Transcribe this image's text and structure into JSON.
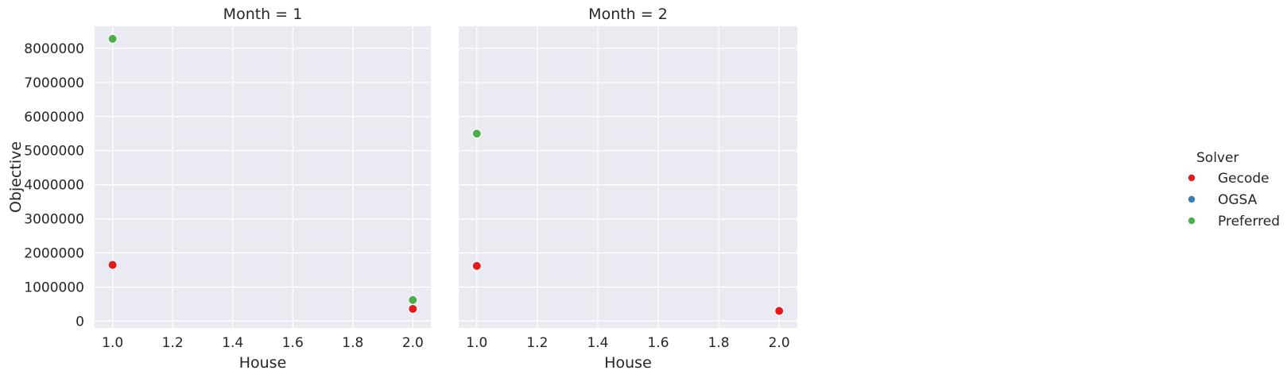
{
  "chart_data": {
    "type": "scatter",
    "xlabel": "House",
    "ylabel": "Objective",
    "xlim": [
      0.94,
      2.06
    ],
    "ylim": [
      -200000,
      8650000
    ],
    "xticks": [
      "1.0",
      "1.2",
      "1.4",
      "1.6",
      "1.8",
      "2.0"
    ],
    "yticks": [
      "0",
      "1000000",
      "2000000",
      "3000000",
      "4000000",
      "5000000",
      "6000000",
      "7000000",
      "8000000"
    ],
    "grid": true,
    "legend": {
      "title": "Solver",
      "placement": "right",
      "entries": [
        {
          "name": "Gecode",
          "color": "#e41a1c"
        },
        {
          "name": "OGSA",
          "color": "#377eb8"
        },
        {
          "name": "Preferred",
          "color": "#4daf4a"
        }
      ]
    },
    "panels": [
      {
        "title": "Month = 1",
        "series": [
          {
            "name": "Gecode",
            "points": [
              [
                1.0,
                1650000
              ],
              [
                2.0,
                360000
              ]
            ]
          },
          {
            "name": "OGSA",
            "points": []
          },
          {
            "name": "Preferred",
            "points": [
              [
                1.0,
                8280000
              ],
              [
                2.0,
                620000
              ]
            ]
          }
        ]
      },
      {
        "title": "Month = 2",
        "series": [
          {
            "name": "Gecode",
            "points": [
              [
                1.0,
                1620000
              ],
              [
                2.0,
                300000
              ]
            ]
          },
          {
            "name": "OGSA",
            "points": []
          },
          {
            "name": "Preferred",
            "points": [
              [
                1.0,
                5500000
              ]
            ]
          }
        ]
      }
    ]
  }
}
